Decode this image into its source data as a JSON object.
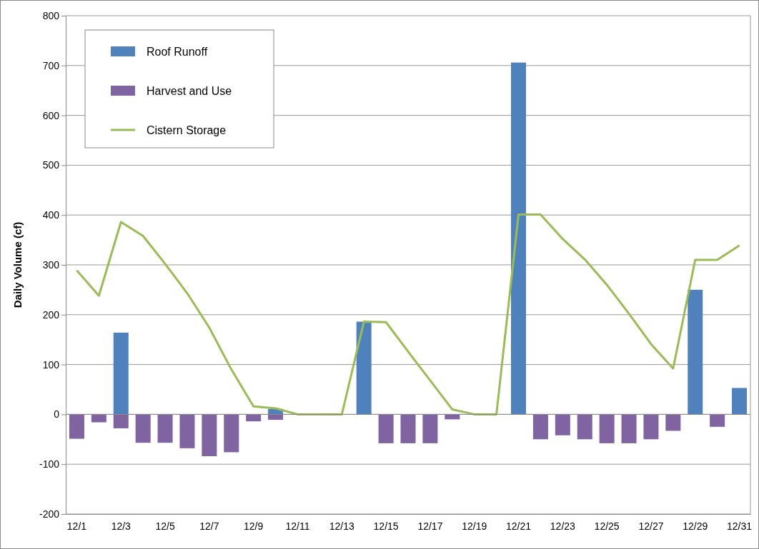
{
  "chart_data": {
    "type": "bar",
    "ylabel": "Daily Volume (cf)",
    "categories": [
      "12/1",
      null,
      "12/3",
      null,
      "12/5",
      null,
      "12/7",
      null,
      "12/9",
      null,
      "12/11",
      null,
      "12/13",
      null,
      "12/15",
      null,
      "12/17",
      null,
      "12/19",
      null,
      "12/21",
      null,
      "12/23",
      null,
      "12/25",
      null,
      "12/27",
      null,
      "12/29",
      null,
      "12/31"
    ],
    "series": [
      {
        "name": "Roof Runoff",
        "color": "#4f81bd",
        "values": [
          null,
          null,
          164,
          null,
          null,
          null,
          null,
          null,
          null,
          11,
          null,
          null,
          null,
          186,
          null,
          null,
          null,
          null,
          null,
          null,
          706,
          null,
          null,
          null,
          null,
          null,
          null,
          null,
          250,
          null,
          53
        ]
      },
      {
        "name": "Harvest and Use",
        "color": "#8064a2",
        "values": [
          -49,
          -16,
          -28,
          -57,
          -57,
          -68,
          -84,
          -76,
          -14,
          -11,
          0,
          0,
          0,
          null,
          -58,
          -58,
          -58,
          -10,
          0,
          0,
          null,
          -50,
          -42,
          -50,
          -58,
          -58,
          -50,
          -33,
          null,
          -25,
          null
        ]
      },
      {
        "name": "Cistern Storage",
        "type": "line",
        "color": "#9bbb59",
        "values": [
          289,
          238,
          386,
          358,
          302,
          243,
          174,
          90,
          16,
          12,
          0,
          0,
          0,
          186,
          185,
          126,
          68,
          10,
          0,
          0,
          401,
          401,
          352,
          311,
          260,
          202,
          141,
          92,
          310,
          310,
          339
        ]
      }
    ],
    "stacked": true,
    "ylim": [
      -200,
      800
    ],
    "yticks": [
      -200,
      -100,
      0,
      100,
      200,
      300,
      400,
      500,
      600,
      700,
      800
    ],
    "grid": "y",
    "legend": "top left",
    "line_style": "solid"
  }
}
